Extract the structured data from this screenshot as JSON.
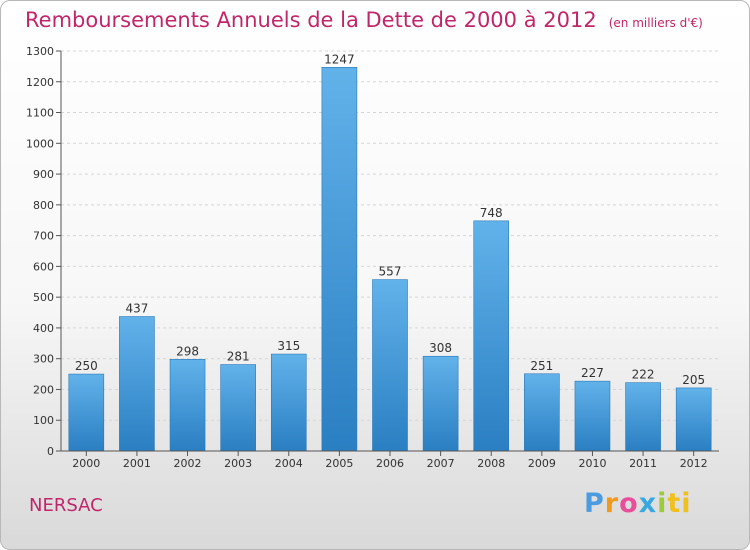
{
  "header": {
    "title": "Remboursements Annuels de la Dette de 2000 à 2012",
    "subtitle": "(en milliers d'€)"
  },
  "footer": {
    "commune": "NERSAC",
    "logo_letters": [
      "P",
      "r",
      "o",
      "x",
      "i",
      "ti"
    ]
  },
  "colors": {
    "accent": "#c0266a",
    "bar_top": "#62b2ea",
    "bar_bottom": "#2a7fc2"
  },
  "chart_data": {
    "type": "bar",
    "categories": [
      "2000",
      "2001",
      "2002",
      "2003",
      "2004",
      "2005",
      "2006",
      "2007",
      "2008",
      "2009",
      "2010",
      "2011",
      "2012"
    ],
    "values": [
      250,
      437,
      298,
      281,
      315,
      1247,
      557,
      308,
      748,
      251,
      227,
      222,
      205
    ],
    "data_labels": [
      "250",
      "437",
      "298",
      "281",
      "315",
      "1247",
      "557",
      "308",
      "748",
      "251",
      "227",
      "222",
      "205"
    ],
    "yticks": [
      "0",
      "100",
      "200",
      "300",
      "400",
      "500",
      "600",
      "700",
      "800",
      "900",
      "1000",
      "1100",
      "1200",
      "1300"
    ],
    "ylim": [
      0,
      1300
    ],
    "grid": true,
    "legend": "none"
  }
}
